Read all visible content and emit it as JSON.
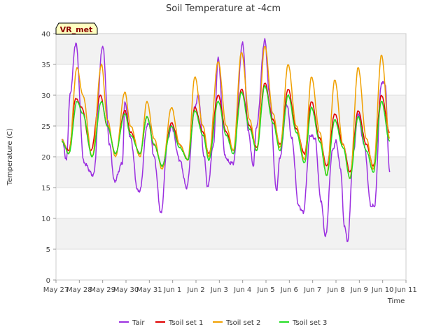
{
  "chart_data": {
    "type": "line",
    "title": "Soil Temperature at -4cm",
    "xlabel": "Time",
    "ylabel": "Temperature (C)",
    "station_tag": "VR_met",
    "ylim": [
      0,
      40
    ],
    "xlim": [
      "May 27",
      "Jun 11"
    ],
    "yticks": [
      0,
      5,
      10,
      15,
      20,
      25,
      30,
      35,
      40
    ],
    "xticks": [
      "May 27",
      "May 28",
      "May 29",
      "May 30",
      "May 31",
      "Jun 1",
      "Jun 2",
      "Jun 3",
      "Jun 4",
      "Jun 5",
      "Jun 6",
      "Jun 7",
      "Jun 8",
      "Jun 9",
      "Jun 10",
      "Jun 11"
    ],
    "x_unit": "days since May 27 00:00",
    "grid": "horizontal bands",
    "legend_position": "bottom",
    "series": [
      {
        "name": "Tair",
        "color": "#9b30e0",
        "points": [
          [
            0.25,
            23
          ],
          [
            0.45,
            19.5
          ],
          [
            0.6,
            30
          ],
          [
            0.85,
            38.5
          ],
          [
            1.2,
            19
          ],
          [
            1.6,
            17
          ],
          [
            2.0,
            38
          ],
          [
            2.3,
            22
          ],
          [
            2.5,
            16
          ],
          [
            2.85,
            19
          ],
          [
            2.95,
            29
          ],
          [
            3.2,
            23
          ],
          [
            3.5,
            14.5
          ],
          [
            3.6,
            14.5
          ],
          [
            3.9,
            25
          ],
          [
            4.0,
            25.5
          ],
          [
            4.2,
            20
          ],
          [
            4.5,
            10.8
          ],
          [
            4.8,
            23
          ],
          [
            4.95,
            25
          ],
          [
            5.3,
            19.5
          ],
          [
            5.6,
            15
          ],
          [
            5.95,
            28
          ],
          [
            6.1,
            30
          ],
          [
            6.35,
            20
          ],
          [
            6.5,
            15
          ],
          [
            6.75,
            22
          ],
          [
            6.95,
            36
          ],
          [
            7.25,
            20
          ],
          [
            7.45,
            19
          ],
          [
            7.6,
            19
          ],
          [
            8.0,
            38.5
          ],
          [
            8.25,
            24
          ],
          [
            8.45,
            18.5
          ],
          [
            8.6,
            25
          ],
          [
            8.95,
            39
          ],
          [
            9.15,
            30
          ],
          [
            9.45,
            14.5
          ],
          [
            9.6,
            20
          ],
          [
            9.9,
            28.5
          ],
          [
            10.1,
            23
          ],
          [
            10.4,
            12
          ],
          [
            10.6,
            11
          ],
          [
            10.9,
            23.5
          ],
          [
            11.1,
            23
          ],
          [
            11.35,
            13
          ],
          [
            11.55,
            7
          ],
          [
            11.85,
            21
          ],
          [
            12.0,
            22.5
          ],
          [
            12.2,
            18
          ],
          [
            12.35,
            9
          ],
          [
            12.5,
            6.3
          ],
          [
            12.75,
            21
          ],
          [
            12.95,
            27
          ],
          [
            13.2,
            22
          ],
          [
            13.5,
            12
          ],
          [
            13.65,
            12
          ],
          [
            13.95,
            32
          ],
          [
            14.1,
            32
          ],
          [
            14.3,
            17.5
          ]
        ]
      },
      {
        "name": "Tsoil set 1",
        "color": "#e00000",
        "points": [
          [
            0.25,
            22.5
          ],
          [
            0.55,
            21
          ],
          [
            0.85,
            29.5
          ],
          [
            1.1,
            28
          ],
          [
            1.5,
            21
          ],
          [
            1.9,
            30
          ],
          [
            2.2,
            25
          ],
          [
            2.55,
            20.5
          ],
          [
            2.95,
            27.5
          ],
          [
            3.2,
            24
          ],
          [
            3.6,
            20.5
          ],
          [
            3.9,
            26.5
          ],
          [
            4.2,
            22
          ],
          [
            4.55,
            18.5
          ],
          [
            4.95,
            25.5
          ],
          [
            5.3,
            22
          ],
          [
            5.65,
            19.5
          ],
          [
            5.95,
            28
          ],
          [
            6.3,
            24
          ],
          [
            6.55,
            20.5
          ],
          [
            6.95,
            30
          ],
          [
            7.3,
            24
          ],
          [
            7.6,
            21
          ],
          [
            7.95,
            31
          ],
          [
            8.3,
            25
          ],
          [
            8.6,
            21.5
          ],
          [
            8.95,
            32
          ],
          [
            9.3,
            26
          ],
          [
            9.6,
            22
          ],
          [
            9.95,
            31
          ],
          [
            10.3,
            24.5
          ],
          [
            10.65,
            20.5
          ],
          [
            10.95,
            29
          ],
          [
            11.3,
            23
          ],
          [
            11.6,
            18.5
          ],
          [
            11.95,
            27
          ],
          [
            12.3,
            22
          ],
          [
            12.6,
            17.5
          ],
          [
            12.95,
            27.5
          ],
          [
            13.3,
            22
          ],
          [
            13.6,
            18.5
          ],
          [
            13.95,
            30
          ],
          [
            14.3,
            24
          ]
        ]
      },
      {
        "name": "Tsoil set 2",
        "color": "#f0a000",
        "points": [
          [
            0.25,
            22.8
          ],
          [
            0.55,
            20.5
          ],
          [
            0.9,
            34.5
          ],
          [
            1.15,
            30
          ],
          [
            1.55,
            20
          ],
          [
            1.95,
            35
          ],
          [
            2.2,
            26
          ],
          [
            2.55,
            20
          ],
          [
            2.95,
            30.5
          ],
          [
            3.2,
            25
          ],
          [
            3.6,
            20
          ],
          [
            3.9,
            29
          ],
          [
            4.2,
            23
          ],
          [
            4.55,
            18
          ],
          [
            4.95,
            28
          ],
          [
            5.3,
            22
          ],
          [
            5.65,
            19.5
          ],
          [
            5.95,
            33
          ],
          [
            6.3,
            25
          ],
          [
            6.55,
            20
          ],
          [
            6.95,
            35.5
          ],
          [
            7.3,
            25
          ],
          [
            7.6,
            21
          ],
          [
            7.95,
            37
          ],
          [
            8.3,
            26
          ],
          [
            8.6,
            21
          ],
          [
            8.95,
            38
          ],
          [
            9.3,
            27
          ],
          [
            9.6,
            21.5
          ],
          [
            9.95,
            35
          ],
          [
            10.3,
            25
          ],
          [
            10.65,
            19.5
          ],
          [
            10.95,
            33
          ],
          [
            11.3,
            24
          ],
          [
            11.6,
            17
          ],
          [
            11.95,
            32.5
          ],
          [
            12.3,
            22
          ],
          [
            12.6,
            16.5
          ],
          [
            12.95,
            34.5
          ],
          [
            13.3,
            23
          ],
          [
            13.6,
            18
          ],
          [
            13.95,
            36.5
          ],
          [
            14.3,
            23
          ]
        ]
      },
      {
        "name": "Tsoil set 3",
        "color": "#22dd22",
        "points": [
          [
            0.25,
            22.5
          ],
          [
            0.55,
            20.5
          ],
          [
            0.9,
            29
          ],
          [
            1.15,
            27
          ],
          [
            1.55,
            20
          ],
          [
            1.95,
            29
          ],
          [
            2.2,
            25
          ],
          [
            2.55,
            20.5
          ],
          [
            2.95,
            27
          ],
          [
            3.2,
            23.5
          ],
          [
            3.6,
            20.5
          ],
          [
            3.9,
            26.5
          ],
          [
            4.2,
            22
          ],
          [
            4.55,
            18.5
          ],
          [
            4.95,
            25
          ],
          [
            5.3,
            21.5
          ],
          [
            5.65,
            19.5
          ],
          [
            5.95,
            27.5
          ],
          [
            6.3,
            23.5
          ],
          [
            6.55,
            19.5
          ],
          [
            6.95,
            29
          ],
          [
            7.3,
            23.5
          ],
          [
            7.6,
            20.5
          ],
          [
            7.95,
            30.5
          ],
          [
            8.3,
            24.5
          ],
          [
            8.6,
            21
          ],
          [
            8.95,
            31.5
          ],
          [
            9.3,
            25.5
          ],
          [
            9.6,
            21
          ],
          [
            9.95,
            30
          ],
          [
            10.3,
            24
          ],
          [
            10.65,
            19
          ],
          [
            10.95,
            28
          ],
          [
            11.3,
            22.5
          ],
          [
            11.6,
            17
          ],
          [
            11.95,
            26
          ],
          [
            12.3,
            21.5
          ],
          [
            12.6,
            16.5
          ],
          [
            12.95,
            26.5
          ],
          [
            13.3,
            21
          ],
          [
            13.6,
            17.5
          ],
          [
            13.95,
            29
          ],
          [
            14.3,
            22.5
          ]
        ]
      }
    ]
  }
}
